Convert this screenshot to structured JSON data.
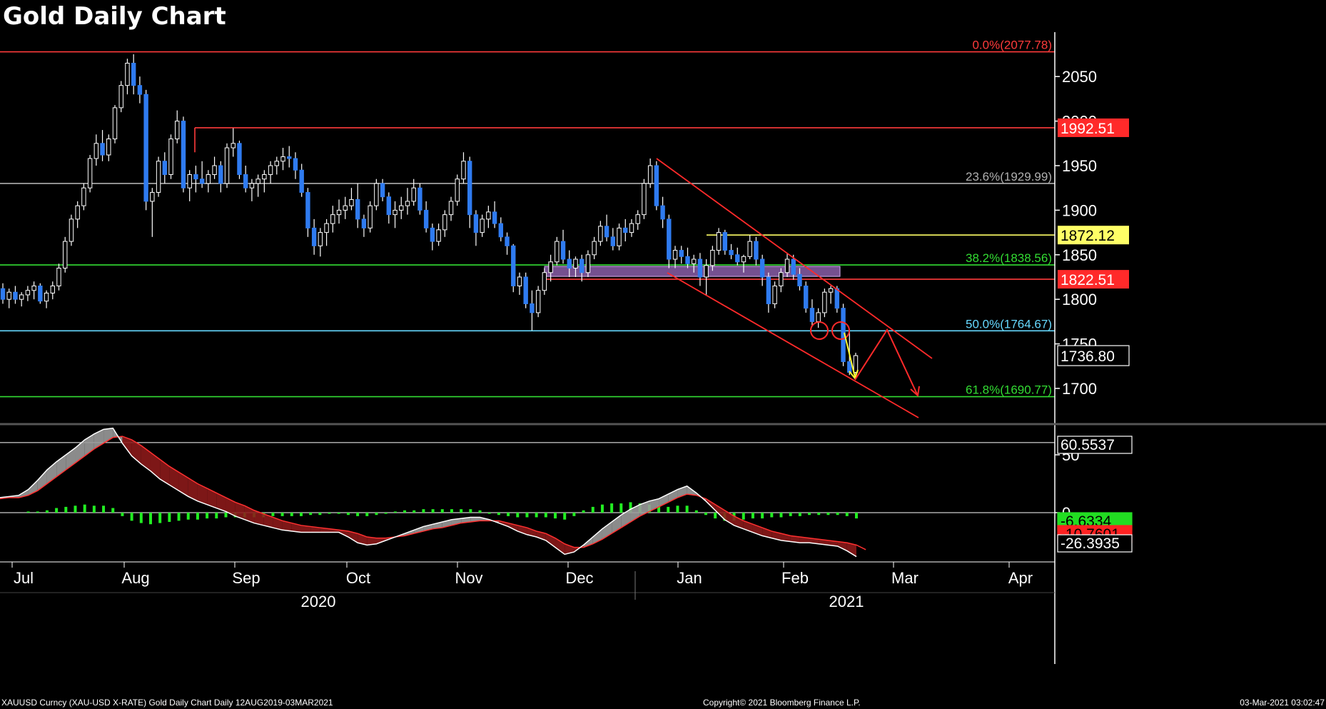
{
  "chart_data": {
    "type": "candlestick",
    "title": "Gold Daily Chart",
    "x_months": [
      "Jul",
      "Aug",
      "Sep",
      "Oct",
      "Nov",
      "Dec",
      "Jan",
      "Feb",
      "Mar",
      "Apr"
    ],
    "year_labels": [
      "2020",
      "2021"
    ],
    "y_ticks": [
      1700,
      1750,
      1800,
      1850,
      1900,
      1950,
      2000,
      2050
    ],
    "y_range": [
      1650,
      2095
    ],
    "last_price": "1736.80",
    "levels": [
      {
        "label": "0.0%(2077.78)",
        "value": 2077.78,
        "color": "#ff3b3b",
        "box": ""
      },
      {
        "label": "",
        "value": 1992.51,
        "color": "#ff3b3b",
        "box": "1992.51"
      },
      {
        "label": "23.6%(1929.99)",
        "value": 1929.99,
        "color": "#b0b0b0",
        "box": ""
      },
      {
        "label": "",
        "value": 1872.12,
        "color": "#ffff66",
        "box": "1872.12"
      },
      {
        "label": "38.2%(1838.56)",
        "value": 1838.56,
        "color": "#33dd33",
        "box": ""
      },
      {
        "label": "",
        "value": 1822.51,
        "color": "#ff3b3b",
        "box": "1822.51"
      },
      {
        "label": "50.0%(1764.67)",
        "value": 1764.67,
        "color": "#66d9ff",
        "box": ""
      },
      {
        "label": "61.8%(1690.77)",
        "value": 1690.77,
        "color": "#33dd33",
        "box": ""
      }
    ],
    "candles": [
      [
        1812,
        1818,
        1795,
        1800
      ],
      [
        1800,
        1812,
        1790,
        1808
      ],
      [
        1808,
        1815,
        1795,
        1800
      ],
      [
        1800,
        1808,
        1792,
        1805
      ],
      [
        1805,
        1815,
        1798,
        1810
      ],
      [
        1810,
        1820,
        1800,
        1815
      ],
      [
        1815,
        1818,
        1795,
        1798
      ],
      [
        1798,
        1810,
        1790,
        1807
      ],
      [
        1807,
        1820,
        1800,
        1815
      ],
      [
        1815,
        1840,
        1810,
        1835
      ],
      [
        1835,
        1870,
        1830,
        1865
      ],
      [
        1865,
        1895,
        1860,
        1890
      ],
      [
        1890,
        1910,
        1880,
        1905
      ],
      [
        1905,
        1930,
        1900,
        1925
      ],
      [
        1925,
        1962,
        1920,
        1958
      ],
      [
        1958,
        1985,
        1950,
        1975
      ],
      [
        1975,
        1990,
        1955,
        1962
      ],
      [
        1962,
        1985,
        1955,
        1980
      ],
      [
        1980,
        2018,
        1975,
        2015
      ],
      [
        2015,
        2045,
        2010,
        2040
      ],
      [
        2040,
        2070,
        2030,
        2065
      ],
      [
        2065,
        2075,
        2030,
        2040
      ],
      [
        2040,
        2050,
        2020,
        2030
      ],
      [
        2030,
        2035,
        1900,
        1910
      ],
      [
        1910,
        1925,
        1870,
        1920
      ],
      [
        1920,
        1960,
        1915,
        1955
      ],
      [
        1955,
        1965,
        1930,
        1940
      ],
      [
        1940,
        1985,
        1935,
        1980
      ],
      [
        1980,
        2012,
        1975,
        2000
      ],
      [
        2000,
        2005,
        1920,
        1925
      ],
      [
        1925,
        1945,
        1910,
        1940
      ],
      [
        1940,
        1950,
        1920,
        1935
      ],
      [
        1935,
        1955,
        1925,
        1930
      ],
      [
        1930,
        1945,
        1920,
        1940
      ],
      [
        1940,
        1960,
        1935,
        1950
      ],
      [
        1950,
        1955,
        1920,
        1930
      ],
      [
        1930,
        1975,
        1925,
        1970
      ],
      [
        1970,
        1992,
        1960,
        1975
      ],
      [
        1975,
        1978,
        1935,
        1940
      ],
      [
        1940,
        1950,
        1920,
        1925
      ],
      [
        1925,
        1935,
        1910,
        1930
      ],
      [
        1930,
        1940,
        1915,
        1935
      ],
      [
        1935,
        1945,
        1920,
        1940
      ],
      [
        1940,
        1955,
        1930,
        1950
      ],
      [
        1950,
        1960,
        1940,
        1955
      ],
      [
        1955,
        1970,
        1945,
        1960
      ],
      [
        1960,
        1972,
        1948,
        1958
      ],
      [
        1958,
        1965,
        1935,
        1945
      ],
      [
        1945,
        1952,
        1915,
        1920
      ],
      [
        1920,
        1925,
        1870,
        1880
      ],
      [
        1880,
        1890,
        1850,
        1860
      ],
      [
        1860,
        1880,
        1848,
        1875
      ],
      [
        1875,
        1890,
        1860,
        1885
      ],
      [
        1885,
        1905,
        1875,
        1895
      ],
      [
        1895,
        1912,
        1885,
        1900
      ],
      [
        1900,
        1915,
        1890,
        1905
      ],
      [
        1905,
        1925,
        1900,
        1912
      ],
      [
        1912,
        1930,
        1880,
        1890
      ],
      [
        1890,
        1895,
        1870,
        1880
      ],
      [
        1880,
        1910,
        1875,
        1905
      ],
      [
        1905,
        1935,
        1900,
        1930
      ],
      [
        1930,
        1935,
        1910,
        1915
      ],
      [
        1915,
        1920,
        1885,
        1895
      ],
      [
        1895,
        1910,
        1880,
        1900
      ],
      [
        1900,
        1915,
        1890,
        1905
      ],
      [
        1905,
        1925,
        1895,
        1910
      ],
      [
        1910,
        1935,
        1905,
        1925
      ],
      [
        1925,
        1930,
        1895,
        1900
      ],
      [
        1900,
        1910,
        1875,
        1880
      ],
      [
        1880,
        1885,
        1855,
        1865
      ],
      [
        1865,
        1885,
        1860,
        1878
      ],
      [
        1878,
        1900,
        1870,
        1895
      ],
      [
        1895,
        1915,
        1888,
        1910
      ],
      [
        1910,
        1940,
        1905,
        1935
      ],
      [
        1935,
        1965,
        1930,
        1955
      ],
      [
        1955,
        1960,
        1880,
        1895
      ],
      [
        1895,
        1900,
        1860,
        1875
      ],
      [
        1875,
        1895,
        1870,
        1890
      ],
      [
        1890,
        1905,
        1880,
        1898
      ],
      [
        1898,
        1910,
        1880,
        1885
      ],
      [
        1885,
        1892,
        1865,
        1870
      ],
      [
        1870,
        1875,
        1850,
        1860
      ],
      [
        1860,
        1862,
        1808,
        1815
      ],
      [
        1815,
        1830,
        1805,
        1825
      ],
      [
        1825,
        1830,
        1790,
        1795
      ],
      [
        1795,
        1810,
        1765,
        1785
      ],
      [
        1785,
        1815,
        1780,
        1810
      ],
      [
        1810,
        1835,
        1805,
        1830
      ],
      [
        1830,
        1850,
        1820,
        1842
      ],
      [
        1842,
        1870,
        1838,
        1865
      ],
      [
        1865,
        1878,
        1840,
        1845
      ],
      [
        1845,
        1855,
        1825,
        1835
      ],
      [
        1835,
        1848,
        1825,
        1845
      ],
      [
        1845,
        1850,
        1820,
        1830
      ],
      [
        1830,
        1855,
        1825,
        1850
      ],
      [
        1850,
        1870,
        1845,
        1865
      ],
      [
        1865,
        1888,
        1860,
        1882
      ],
      [
        1882,
        1895,
        1865,
        1870
      ],
      [
        1870,
        1880,
        1855,
        1860
      ],
      [
        1860,
        1885,
        1855,
        1880
      ],
      [
        1880,
        1890,
        1865,
        1875
      ],
      [
        1875,
        1890,
        1870,
        1885
      ],
      [
        1885,
        1900,
        1878,
        1895
      ],
      [
        1895,
        1935,
        1890,
        1930
      ],
      [
        1930,
        1958,
        1925,
        1950
      ],
      [
        1950,
        1955,
        1900,
        1905
      ],
      [
        1905,
        1915,
        1880,
        1890
      ],
      [
        1890,
        1895,
        1835,
        1845
      ],
      [
        1845,
        1860,
        1835,
        1855
      ],
      [
        1855,
        1860,
        1840,
        1848
      ],
      [
        1848,
        1858,
        1835,
        1840
      ],
      [
        1840,
        1850,
        1830,
        1845
      ],
      [
        1845,
        1852,
        1815,
        1825
      ],
      [
        1825,
        1845,
        1805,
        1838
      ],
      [
        1838,
        1860,
        1832,
        1855
      ],
      [
        1855,
        1880,
        1850,
        1875
      ],
      [
        1875,
        1878,
        1850,
        1855
      ],
      [
        1855,
        1862,
        1845,
        1850
      ],
      [
        1850,
        1858,
        1838,
        1842
      ],
      [
        1842,
        1850,
        1830,
        1848
      ],
      [
        1848,
        1872,
        1845,
        1865
      ],
      [
        1865,
        1870,
        1838,
        1845
      ],
      [
        1845,
        1850,
        1815,
        1825
      ],
      [
        1825,
        1830,
        1785,
        1795
      ],
      [
        1795,
        1820,
        1790,
        1815
      ],
      [
        1815,
        1835,
        1808,
        1830
      ],
      [
        1830,
        1852,
        1825,
        1845
      ],
      [
        1845,
        1850,
        1822,
        1828
      ],
      [
        1828,
        1835,
        1810,
        1815
      ],
      [
        1815,
        1820,
        1785,
        1790
      ],
      [
        1790,
        1800,
        1770,
        1775
      ],
      [
        1775,
        1790,
        1768,
        1785
      ],
      [
        1785,
        1812,
        1780,
        1808
      ],
      [
        1808,
        1815,
        1795,
        1812
      ],
      [
        1812,
        1815,
        1785,
        1790
      ],
      [
        1790,
        1795,
        1725,
        1730
      ],
      [
        1730,
        1765,
        1715,
        1718
      ],
      [
        1718,
        1740,
        1710,
        1736.8
      ]
    ],
    "oscillator": {
      "lines": [
        {
          "label": "60.5537",
          "value": 60.5537,
          "box_bg": "#000000",
          "box_fg": "#ffffff",
          "box_border": "#ffffff"
        },
        {
          "label": "-6.6334",
          "value": -6.6334,
          "box_bg": "#22dd22",
          "box_fg": "#000000",
          "box_border": "#22dd22"
        },
        {
          "label": "-10.7601",
          "value": -10.7601,
          "box_bg": "#ff2222",
          "box_fg": "#000000",
          "box_border": "#ff2222"
        },
        {
          "label": "-26.3935",
          "value": -26.3935,
          "box_bg": "#000000",
          "box_fg": "#ffffff",
          "box_border": "#ffffff"
        }
      ],
      "y_ticks": [
        0,
        50
      ],
      "fast": [
        13,
        14,
        15,
        20,
        28,
        37,
        44,
        50,
        56,
        63,
        68,
        72,
        73,
        60,
        49,
        42,
        36,
        29,
        24,
        19,
        14,
        10,
        7,
        4,
        1,
        -3,
        -6,
        -9,
        -11,
        -13,
        -15,
        -16,
        -17,
        -17,
        -17,
        -17,
        -17,
        -21,
        -26,
        -28,
        -27,
        -24,
        -21,
        -18,
        -15,
        -12,
        -10,
        -8,
        -6,
        -5,
        -4,
        -4,
        -6,
        -9,
        -12,
        -16,
        -19,
        -21,
        -24,
        -30,
        -36,
        -34,
        -28,
        -21,
        -14,
        -8,
        -2,
        3,
        7,
        10,
        12,
        16,
        20,
        23,
        17,
        10,
        2,
        -6,
        -11,
        -14,
        -17,
        -20,
        -22,
        -24,
        -25,
        -26,
        -26,
        -27,
        -28,
        -29,
        -33,
        -38
      ],
      "slow": [
        12,
        13,
        13,
        15,
        19,
        25,
        31,
        37,
        43,
        49,
        55,
        60,
        65,
        66,
        63,
        58,
        52,
        46,
        40,
        35,
        30,
        25,
        21,
        17,
        13,
        9,
        6,
        2,
        -1,
        -4,
        -7,
        -9,
        -11,
        -12,
        -13,
        -14,
        -15,
        -16,
        -18,
        -21,
        -22,
        -22,
        -21,
        -20,
        -18,
        -16,
        -14,
        -13,
        -11,
        -9,
        -8,
        -7,
        -7,
        -7,
        -9,
        -11,
        -13,
        -16,
        -18,
        -22,
        -27,
        -30,
        -30,
        -27,
        -23,
        -18,
        -13,
        -8,
        -3,
        1,
        5,
        9,
        13,
        16,
        15,
        12,
        7,
        2,
        -3,
        -7,
        -10,
        -13,
        -16,
        -18,
        -20,
        -21,
        -22,
        -23,
        -24,
        -25,
        -26,
        -28,
        -32
      ],
      "hist": [
        0,
        0,
        0,
        1,
        1,
        2,
        4,
        5,
        6,
        7,
        6,
        6,
        4,
        -3,
        -7,
        -9,
        -10,
        -9,
        -8,
        -7,
        -6,
        -6,
        -5,
        -5,
        -4,
        -4,
        -4,
        -4,
        -4,
        -3,
        -3,
        -3,
        -3,
        -2,
        -2,
        -1,
        -1,
        -2,
        -3,
        -3,
        -2,
        -1,
        1,
        2,
        2,
        3,
        3,
        3,
        3,
        3,
        3,
        2,
        -1,
        -2,
        -3,
        -4,
        -4,
        -4,
        -4,
        -5,
        -6,
        -3,
        2,
        5,
        7,
        8,
        8,
        9,
        8,
        7,
        6,
        5,
        6,
        6,
        2,
        -2,
        -5,
        -7,
        -7,
        -6,
        -5,
        -5,
        -4,
        -4,
        -3,
        -3,
        -2,
        -2,
        -2,
        -2,
        -3,
        -5
      ]
    }
  },
  "footer": {
    "left": "XAUUSD Curncy (XAU-USD X-RATE) Gold Daily Chart  Daily 12AUG2019-03MAR2021",
    "center": "Copyright© 2021 Bloomberg Finance L.P.",
    "right": "03-Mar-2021 03:02:47"
  }
}
